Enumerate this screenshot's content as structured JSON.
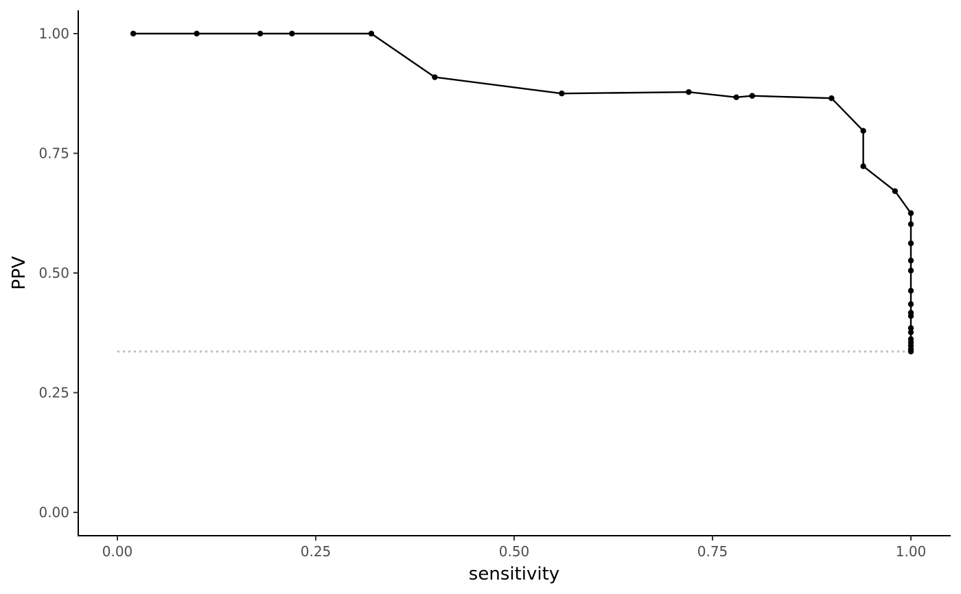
{
  "chart_data": {
    "type": "line",
    "xlabel": "sensitivity",
    "ylabel": "PPV",
    "xlim": [
      -0.05,
      1.05
    ],
    "ylim": [
      -0.05,
      1.05
    ],
    "xticks": [
      0,
      0.25,
      0.5,
      0.75,
      1
    ],
    "xtick_labels": [
      "0.00",
      "0.25",
      "0.50",
      "0.75",
      "1.00"
    ],
    "yticks": [
      0,
      0.25,
      0.5,
      0.75,
      1
    ],
    "ytick_labels": [
      "0.00",
      "0.25",
      "0.50",
      "0.75",
      "1.00"
    ],
    "grid": false,
    "series": [
      {
        "color": "#000000",
        "points": [
          [
            0.02,
            1.0
          ],
          [
            0.1,
            1.0
          ],
          [
            0.18,
            1.0
          ],
          [
            0.22,
            1.0
          ],
          [
            0.32,
            1.0
          ],
          [
            0.4,
            0.909
          ],
          [
            0.56,
            0.875
          ],
          [
            0.72,
            0.878
          ],
          [
            0.78,
            0.867
          ],
          [
            0.8,
            0.87
          ],
          [
            0.9,
            0.865
          ],
          [
            0.94,
            0.797
          ],
          [
            0.94,
            0.723
          ],
          [
            0.98,
            0.671
          ],
          [
            1.0,
            0.625
          ],
          [
            1.0,
            0.602
          ],
          [
            1.0,
            0.562
          ],
          [
            1.0,
            0.526
          ],
          [
            1.0,
            0.505
          ],
          [
            1.0,
            0.463
          ],
          [
            1.0,
            0.435
          ],
          [
            1.0,
            0.417
          ],
          [
            1.0,
            0.41
          ],
          [
            1.0,
            0.385
          ],
          [
            1.0,
            0.376
          ],
          [
            1.0,
            0.362
          ],
          [
            1.0,
            0.355
          ],
          [
            1.0,
            0.348
          ],
          [
            1.0,
            0.341
          ],
          [
            1.0,
            0.336
          ]
        ]
      }
    ],
    "reference_line": {
      "y": 0.336,
      "x_range": [
        0,
        1
      ],
      "style": "dotted",
      "color": "#bfbfbf"
    }
  }
}
